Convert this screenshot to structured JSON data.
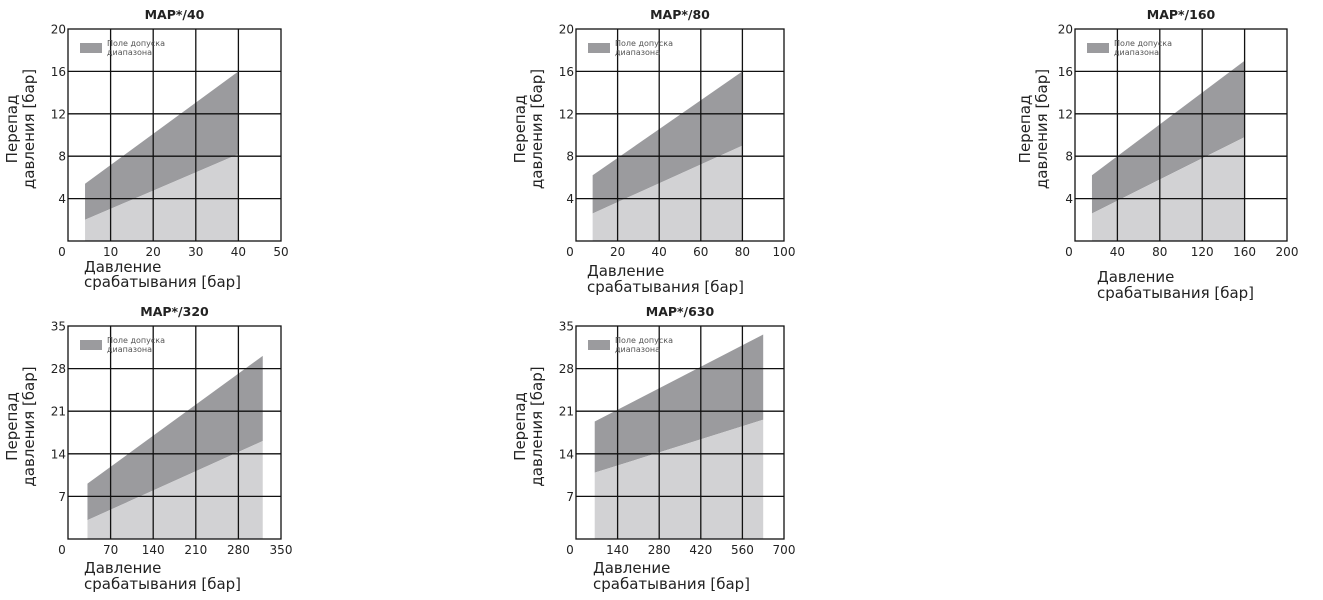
{
  "chart_data": [
    {
      "type": "area",
      "title": "MAP*/40",
      "xlabel": [
        "Давление",
        "срабатывания [бар]"
      ],
      "ylabel": [
        "Перепад",
        "давления [бар]"
      ],
      "legend": "Поле допуска диапазона",
      "legend_lines": [
        "Поле допуска",
        "диапазона"
      ],
      "legend_position": "top-left",
      "grid": true,
      "xlim": [
        0,
        50
      ],
      "ylim": [
        0,
        20
      ],
      "xticks": [
        "0",
        "10",
        "20",
        "30",
        "40",
        "50"
      ],
      "yticks": [
        "4",
        "8",
        "12",
        "16",
        "20"
      ],
      "series": [
        {
          "name": "Поле допуска диапазона",
          "role": "upper",
          "x": [
            4,
            40
          ],
          "y": [
            5.4,
            16.0
          ]
        },
        {
          "role": "lower",
          "x": [
            4,
            40
          ],
          "y": [
            2.0,
            8.2
          ]
        }
      ],
      "colors": {
        "band": "#9b9b9e",
        "below": "#d2d2d4"
      }
    },
    {
      "type": "area",
      "title": "MAP*/80",
      "xlabel": [
        "Давление",
        "срабатывания [бар]"
      ],
      "ylabel": [
        "Перепад",
        "давления [бар]"
      ],
      "legend": "Поле допуска диапазона",
      "legend_lines": [
        "Поле допуска",
        "диапазона"
      ],
      "legend_position": "top-left",
      "grid": true,
      "xlim": [
        0,
        100
      ],
      "ylim": [
        0,
        20
      ],
      "xticks": [
        "0",
        "20",
        "40",
        "60",
        "80",
        "100"
      ],
      "yticks": [
        "4",
        "8",
        "12",
        "16",
        "20"
      ],
      "series": [
        {
          "name": "Поле допуска диапазона",
          "role": "upper",
          "x": [
            8,
            80
          ],
          "y": [
            6.2,
            16.0
          ]
        },
        {
          "role": "lower",
          "x": [
            8,
            80
          ],
          "y": [
            2.6,
            9.0
          ]
        }
      ],
      "colors": {
        "band": "#9b9b9e",
        "below": "#d2d2d4"
      }
    },
    {
      "type": "area",
      "title": "MAP*/160",
      "xlabel": [
        "Давление",
        "срабатывания [бар]"
      ],
      "ylabel": [
        "Перепад",
        "давления [бар]"
      ],
      "legend": "Поле допуска диапазона",
      "legend_lines": [
        "Поле допуска",
        "диапазона"
      ],
      "legend_position": "top-left",
      "grid": true,
      "xlim": [
        0,
        200
      ],
      "ylim": [
        0,
        20
      ],
      "xticks": [
        "0",
        "40",
        "80",
        "120",
        "160",
        "200"
      ],
      "yticks": [
        "4",
        "8",
        "12",
        "16",
        "20"
      ],
      "series": [
        {
          "name": "Поле допуска диапазона",
          "role": "upper",
          "x": [
            16,
            160
          ],
          "y": [
            6.2,
            17.0
          ]
        },
        {
          "role": "lower",
          "x": [
            16,
            160
          ],
          "y": [
            2.6,
            9.8
          ]
        }
      ],
      "colors": {
        "band": "#9b9b9e",
        "below": "#d2d2d4"
      }
    },
    {
      "type": "area",
      "title": "MAP*/320",
      "xlabel": [
        "Давление",
        "срабатывания [бар]"
      ],
      "ylabel": [
        "Перепад",
        "давления [бар]"
      ],
      "legend": "Поле допуска диапазона",
      "legend_lines": [
        "Поле допуска",
        "диапазона"
      ],
      "legend_position": "top-left",
      "grid": true,
      "xlim": [
        0,
        350
      ],
      "ylim": [
        0,
        35
      ],
      "xticks": [
        "0",
        "70",
        "140",
        "210",
        "280",
        "350"
      ],
      "yticks": [
        "7",
        "14",
        "21",
        "28",
        "35"
      ],
      "series": [
        {
          "name": "Поле допуска диапазона",
          "role": "upper",
          "x": [
            32,
            320
          ],
          "y": [
            9.1,
            30.1
          ]
        },
        {
          "role": "lower",
          "x": [
            32,
            320
          ],
          "y": [
            3.1,
            16.1
          ]
        }
      ],
      "colors": {
        "band": "#9b9b9e",
        "below": "#d2d2d4"
      }
    },
    {
      "type": "area",
      "title": "MAP*/630",
      "xlabel": [
        "Давление",
        "срабатывания [бар]"
      ],
      "ylabel": [
        "Перепад",
        "давления [бар]"
      ],
      "legend": "Поле допуска диапазона",
      "legend_lines": [
        "Поле допуска",
        "диапазона"
      ],
      "legend_position": "top-left",
      "grid": true,
      "xlim": [
        0,
        700
      ],
      "ylim": [
        0,
        35
      ],
      "xticks": [
        "0",
        "140",
        "280",
        "420",
        "560",
        "700"
      ],
      "yticks": [
        "7",
        "14",
        "21",
        "28",
        "35"
      ],
      "series": [
        {
          "name": "Поле допуска диапазона",
          "role": "upper",
          "x": [
            63,
            630
          ],
          "y": [
            19.3,
            33.6
          ]
        },
        {
          "role": "lower",
          "x": [
            63,
            630
          ],
          "y": [
            10.9,
            19.6
          ]
        }
      ],
      "colors": {
        "band": "#9b9b9e",
        "below": "#d2d2d4"
      }
    }
  ]
}
